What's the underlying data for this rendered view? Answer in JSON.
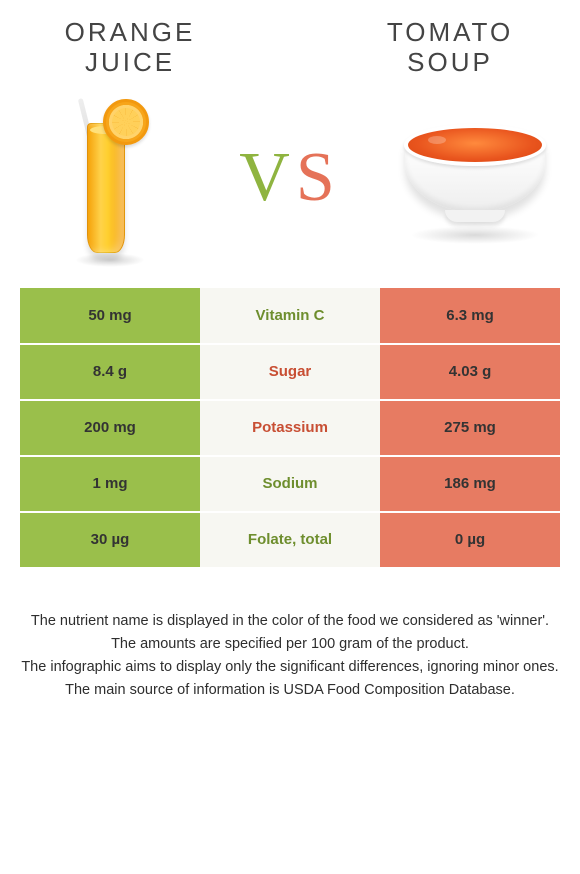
{
  "left_food": {
    "title_line1": "ORANGE",
    "title_line2": "JUICE"
  },
  "right_food": {
    "title_line1": "TOMATO",
    "title_line2": "SOUP"
  },
  "vs": {
    "v": "V",
    "s": "S"
  },
  "colors": {
    "left_bg": "#9abf4b",
    "mid_bg": "#f7f7f2",
    "right_bg": "#e77b62",
    "winner_left_text": "#6e8e2e",
    "winner_right_text": "#c84f34"
  },
  "rows": [
    {
      "nutrient": "Vitamin C",
      "left": "50 mg",
      "right": "6.3 mg",
      "winner": "left"
    },
    {
      "nutrient": "Sugar",
      "left": "8.4 g",
      "right": "4.03 g",
      "winner": "right"
    },
    {
      "nutrient": "Potassium",
      "left": "200 mg",
      "right": "275 mg",
      "winner": "right"
    },
    {
      "nutrient": "Sodium",
      "left": "1 mg",
      "right": "186 mg",
      "winner": "left"
    },
    {
      "nutrient": "Folate, total",
      "left": "30 µg",
      "right": "0 µg",
      "winner": "left"
    }
  ],
  "footnotes": [
    "The nutrient name is displayed in the color of the food we considered as 'winner'.",
    "The amounts are specified per 100 gram of the product.",
    "The infographic aims to display only the significant differences, ignoring minor ones.",
    "The main source of information is USDA Food Composition Database."
  ]
}
